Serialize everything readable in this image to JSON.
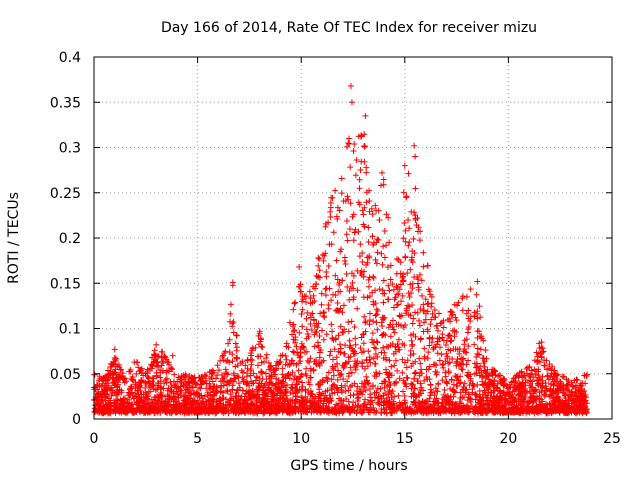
{
  "chart_data": {
    "type": "scatter",
    "title": "Day 166 of 2014, Rate Of TEC Index for receiver mizu",
    "xlabel": "GPS time / hours",
    "ylabel": "ROTI / TECUs",
    "xlim": [
      0,
      25
    ],
    "ylim": [
      0,
      0.4
    ],
    "xticks": [
      0,
      5,
      10,
      15,
      20,
      25
    ],
    "xtick_labels": [
      "0",
      "5",
      "10",
      "15",
      "20",
      "25"
    ],
    "yticks": [
      0,
      0.05,
      0.1,
      0.15,
      0.2,
      0.25,
      0.3,
      0.35,
      0.4
    ],
    "ytick_labels": [
      "0",
      "0.05",
      "0.1",
      "0.15",
      "0.2",
      "0.25",
      "0.3",
      "0.35",
      "0.4"
    ],
    "grid": true,
    "marker": "+",
    "color": "#ff0000",
    "data_x_range": [
      0,
      23.8
    ],
    "envelope": [
      [
        0.0,
        0.05
      ],
      [
        0.5,
        0.045
      ],
      [
        1.0,
        0.07
      ],
      [
        1.5,
        0.045
      ],
      [
        2.0,
        0.065
      ],
      [
        2.5,
        0.05
      ],
      [
        3.0,
        0.08
      ],
      [
        3.5,
        0.07
      ],
      [
        4.0,
        0.045
      ],
      [
        4.5,
        0.05
      ],
      [
        5.0,
        0.045
      ],
      [
        5.5,
        0.05
      ],
      [
        6.0,
        0.06
      ],
      [
        6.4,
        0.08
      ],
      [
        6.7,
        0.15
      ],
      [
        7.0,
        0.06
      ],
      [
        7.5,
        0.07
      ],
      [
        8.0,
        0.095
      ],
      [
        8.5,
        0.06
      ],
      [
        9.0,
        0.07
      ],
      [
        9.5,
        0.11
      ],
      [
        10.0,
        0.16
      ],
      [
        10.5,
        0.15
      ],
      [
        11.0,
        0.2
      ],
      [
        11.5,
        0.25
      ],
      [
        12.0,
        0.27
      ],
      [
        12.3,
        0.33
      ],
      [
        12.6,
        0.3
      ],
      [
        13.0,
        0.33
      ],
      [
        13.5,
        0.23
      ],
      [
        14.0,
        0.27
      ],
      [
        14.5,
        0.15
      ],
      [
        15.0,
        0.27
      ],
      [
        15.5,
        0.3
      ],
      [
        16.0,
        0.19
      ],
      [
        16.5,
        0.12
      ],
      [
        17.0,
        0.11
      ],
      [
        17.5,
        0.13
      ],
      [
        18.0,
        0.15
      ],
      [
        18.5,
        0.15
      ],
      [
        19.0,
        0.06
      ],
      [
        19.5,
        0.05
      ],
      [
        20.0,
        0.04
      ],
      [
        20.5,
        0.05
      ],
      [
        21.0,
        0.06
      ],
      [
        21.5,
        0.085
      ],
      [
        22.0,
        0.06
      ],
      [
        22.5,
        0.05
      ],
      [
        23.0,
        0.04
      ],
      [
        23.8,
        0.05
      ]
    ],
    "outliers": [
      {
        "x": 12.4,
        "y": 0.368
      },
      {
        "x": 12.45,
        "y": 0.35
      },
      {
        "x": 13.1,
        "y": 0.335
      },
      {
        "x": 15.45,
        "y": 0.302
      },
      {
        "x": 15.5,
        "y": 0.29
      },
      {
        "x": 15.0,
        "y": 0.28
      },
      {
        "x": 13.9,
        "y": 0.272
      },
      {
        "x": 13.85,
        "y": 0.258
      },
      {
        "x": 14.1,
        "y": 0.192
      },
      {
        "x": 9.9,
        "y": 0.168
      },
      {
        "x": 6.7,
        "y": 0.151
      },
      {
        "x": 18.5,
        "y": 0.152
      },
      {
        "x": 18.0,
        "y": 0.135
      },
      {
        "x": 8.0,
        "y": 0.097
      },
      {
        "x": 21.6,
        "y": 0.085
      },
      {
        "x": 3.0,
        "y": 0.082
      },
      {
        "x": 1.0,
        "y": 0.077
      },
      {
        "x": 3.8,
        "y": 0.07
      },
      {
        "x": 23.8,
        "y": 0.049
      }
    ]
  }
}
